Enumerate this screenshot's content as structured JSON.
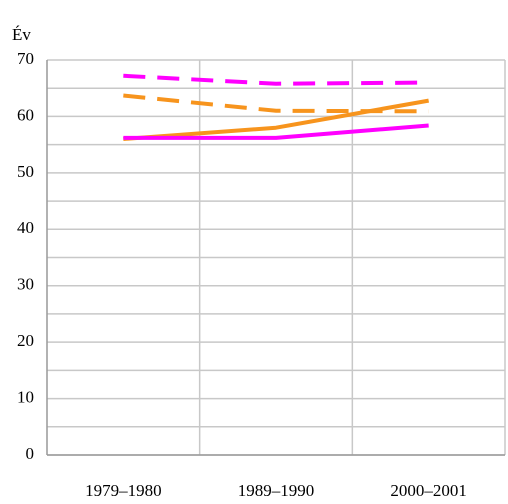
{
  "chart_data": {
    "type": "line",
    "y_label": "Év",
    "categories": [
      "1979–1980",
      "1989–1990",
      "2000–2001"
    ],
    "series": [
      {
        "color": "#ff00ff",
        "style": "dashed",
        "values": [
          67.2,
          65.8,
          66.0
        ]
      },
      {
        "color": "#f7941d",
        "style": "dashed",
        "values": [
          63.7,
          61.0,
          60.9
        ]
      },
      {
        "color": "#f7941d",
        "style": "solid",
        "values": [
          56.0,
          58.0,
          62.8
        ]
      },
      {
        "color": "#ff00ff",
        "style": "solid",
        "values": [
          56.2,
          56.2,
          58.4
        ]
      }
    ],
    "ylim": [
      0,
      70
    ],
    "yticks": [
      0,
      10,
      20,
      30,
      40,
      50,
      60,
      70
    ],
    "minor_yticks": [
      5,
      15,
      25,
      35,
      45,
      55,
      65
    ],
    "grid": true
  }
}
